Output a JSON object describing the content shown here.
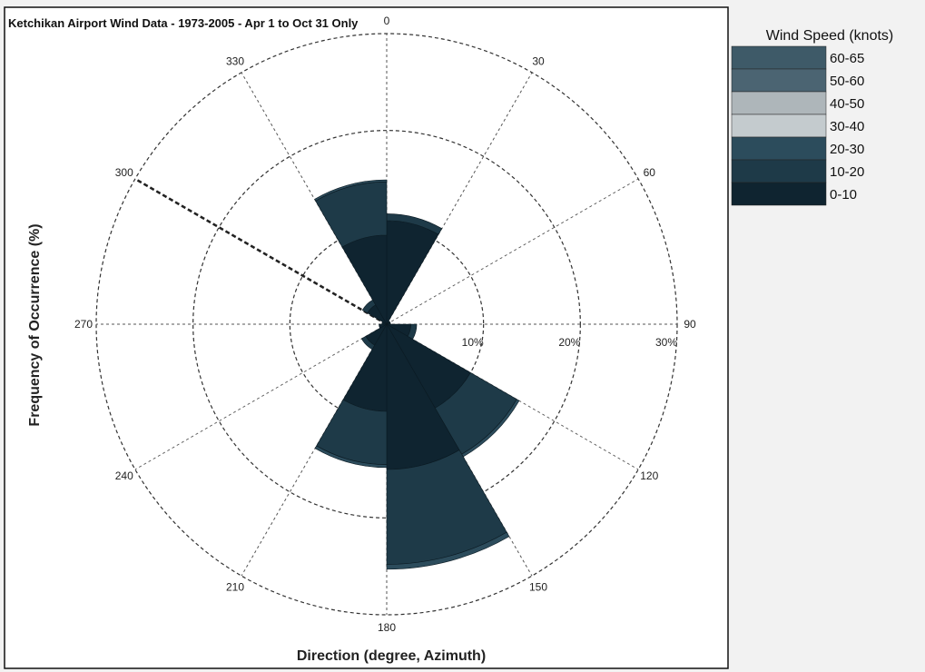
{
  "chart_data": {
    "type": "polar-bar",
    "title": "Ketchikan Airport Wind Data - 1973-2005 - Apr 1  to Oct 31 Only",
    "xlabel": "Direction (degree, Azimuth)",
    "ylabel": "Frequency of Occurrence (%)",
    "radial_ticks": [
      "10%",
      "20%",
      "30%"
    ],
    "radial_values": [
      10,
      20,
      30
    ],
    "r_max": 30,
    "direction_labels": [
      {
        "deg": 0,
        "text": "0"
      },
      {
        "deg": 30,
        "text": "30"
      },
      {
        "deg": 60,
        "text": "60"
      },
      {
        "deg": 90,
        "text": "90"
      },
      {
        "deg": 120,
        "text": "120"
      },
      {
        "deg": 150,
        "text": "150"
      },
      {
        "deg": 180,
        "text": "180"
      },
      {
        "deg": 210,
        "text": "210"
      },
      {
        "deg": 240,
        "text": "240"
      },
      {
        "deg": 270,
        "text": "270"
      },
      {
        "deg": 300,
        "text": "300"
      },
      {
        "deg": 330,
        "text": "330"
      }
    ],
    "legend_title": "Wind Speed (knots)",
    "legend": [
      {
        "label": "60-65",
        "color": "#3e5a68"
      },
      {
        "label": "50-60",
        "color": "#4b6472"
      },
      {
        "label": "40-50",
        "color": "#aeb6ba"
      },
      {
        "label": "30-40",
        "color": "#c4cbce"
      },
      {
        "label": "20-30",
        "color": "#2c4c5c"
      },
      {
        "label": "10-20",
        "color": "#1e3a48"
      },
      {
        "label": "0-10",
        "color": "#0f2430"
      }
    ],
    "sectors": [
      {
        "dir": 0,
        "bands": [
          {
            "band": "0-10",
            "value": 10.7
          },
          {
            "band": "10-20",
            "value": 0.7
          }
        ]
      },
      {
        "dir": 30,
        "bands": [
          {
            "band": "0-10",
            "value": 0.4
          }
        ]
      },
      {
        "dir": 60,
        "bands": [
          {
            "band": "0-10",
            "value": 0.4
          }
        ]
      },
      {
        "dir": 90,
        "bands": [
          {
            "band": "0-10",
            "value": 2.5
          },
          {
            "band": "10-20",
            "value": 0.6
          }
        ]
      },
      {
        "dir": 120,
        "bands": [
          {
            "band": "0-10",
            "value": 10.0
          },
          {
            "band": "10-20",
            "value": 5.5
          },
          {
            "band": "20-30",
            "value": 0.3
          }
        ]
      },
      {
        "dir": 150,
        "bands": [
          {
            "band": "0-10",
            "value": 15.0
          },
          {
            "band": "10-20",
            "value": 9.8
          },
          {
            "band": "20-30",
            "value": 0.5
          }
        ]
      },
      {
        "dir": 180,
        "bands": [
          {
            "band": "0-10",
            "value": 9.0
          },
          {
            "band": "10-20",
            "value": 5.5
          },
          {
            "band": "20-30",
            "value": 0.3
          }
        ]
      },
      {
        "dir": 210,
        "bands": [
          {
            "band": "0-10",
            "value": 2.5
          },
          {
            "band": "10-20",
            "value": 0.5
          }
        ]
      },
      {
        "dir": 240,
        "bands": [
          {
            "band": "0-10",
            "value": 0.8
          }
        ]
      },
      {
        "dir": 270,
        "bands": [
          {
            "band": "0-10",
            "value": 0.5
          }
        ]
      },
      {
        "dir": 300,
        "bands": [
          {
            "band": "0-10",
            "value": 2.3
          },
          {
            "band": "10-20",
            "value": 0.6
          }
        ]
      },
      {
        "dir": 330,
        "bands": [
          {
            "band": "0-10",
            "value": 9.2
          },
          {
            "band": "10-20",
            "value": 5.5
          },
          {
            "band": "20-30",
            "value": 0.2
          }
        ]
      }
    ],
    "grid": true,
    "legend_position": "top-right"
  }
}
